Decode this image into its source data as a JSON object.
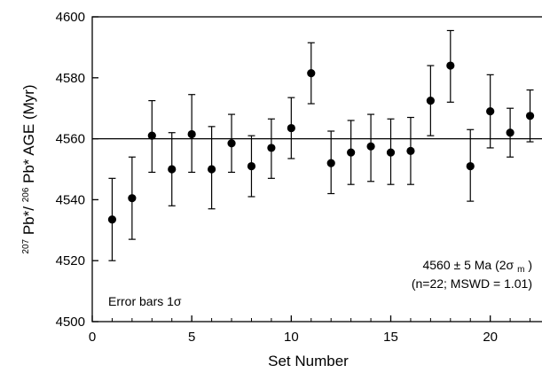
{
  "chart_data": {
    "type": "scatter",
    "title": "",
    "xlabel": "Set Number",
    "ylabel": {
      "sup1": "207",
      "part1": "Pb*/",
      "sup2": "206",
      "part2": "Pb* AGE (Myr)"
    },
    "xlim": [
      0,
      22.6
    ],
    "ylim": [
      4500,
      4600
    ],
    "xticks": [
      0,
      5,
      10,
      15,
      20
    ],
    "yticks": [
      4500,
      4520,
      4540,
      4560,
      4580,
      4600
    ],
    "xtick_labels": [
      "0",
      "5",
      "10",
      "15",
      "20"
    ],
    "ytick_labels": [
      "4500",
      "4520",
      "4540",
      "4560",
      "4580",
      "4600"
    ],
    "reference_line": 4560,
    "grid": false,
    "points": [
      {
        "x": 1,
        "y": 4533.5,
        "lo": 4520,
        "hi": 4547
      },
      {
        "x": 2,
        "y": 4540.5,
        "lo": 4527,
        "hi": 4554
      },
      {
        "x": 3,
        "y": 4561,
        "lo": 4549,
        "hi": 4572.5
      },
      {
        "x": 4,
        "y": 4550,
        "lo": 4538,
        "hi": 4562
      },
      {
        "x": 5,
        "y": 4561.5,
        "lo": 4549,
        "hi": 4574.5
      },
      {
        "x": 6,
        "y": 4550,
        "lo": 4537,
        "hi": 4564
      },
      {
        "x": 7,
        "y": 4558.5,
        "lo": 4549,
        "hi": 4568
      },
      {
        "x": 8,
        "y": 4551,
        "lo": 4541,
        "hi": 4561
      },
      {
        "x": 9,
        "y": 4557,
        "lo": 4547,
        "hi": 4566.5
      },
      {
        "x": 10,
        "y": 4563.5,
        "lo": 4553.5,
        "hi": 4573.5
      },
      {
        "x": 11,
        "y": 4581.5,
        "lo": 4571.5,
        "hi": 4591.5
      },
      {
        "x": 12,
        "y": 4552,
        "lo": 4542,
        "hi": 4562.5
      },
      {
        "x": 13,
        "y": 4555.5,
        "lo": 4545,
        "hi": 4566
      },
      {
        "x": 14,
        "y": 4557.5,
        "lo": 4546,
        "hi": 4568
      },
      {
        "x": 15,
        "y": 4555.5,
        "lo": 4545,
        "hi": 4566.5
      },
      {
        "x": 16,
        "y": 4556,
        "lo": 4545,
        "hi": 4567
      },
      {
        "x": 17,
        "y": 4572.5,
        "lo": 4561,
        "hi": 4584
      },
      {
        "x": 18,
        "y": 4584,
        "lo": 4572,
        "hi": 4595.5
      },
      {
        "x": 19,
        "y": 4551,
        "lo": 4539.5,
        "hi": 4563
      },
      {
        "x": 20,
        "y": 4569,
        "lo": 4557,
        "hi": 4581
      },
      {
        "x": 21,
        "y": 4562,
        "lo": 4554,
        "hi": 4570
      },
      {
        "x": 22,
        "y": 4567.5,
        "lo": 4559,
        "hi": 4576
      }
    ],
    "annotations": {
      "result_line1_a": "4560 ± 5 Ma (2σ",
      "result_line1_sub": "m",
      "result_line1_b": ")",
      "result_line2": "(n=22; MSWD = 1.01)",
      "error_note": "Error bars 1σ"
    },
    "colors": {
      "marker": "#000000",
      "axes": "#000000",
      "background": "#ffffff"
    }
  }
}
